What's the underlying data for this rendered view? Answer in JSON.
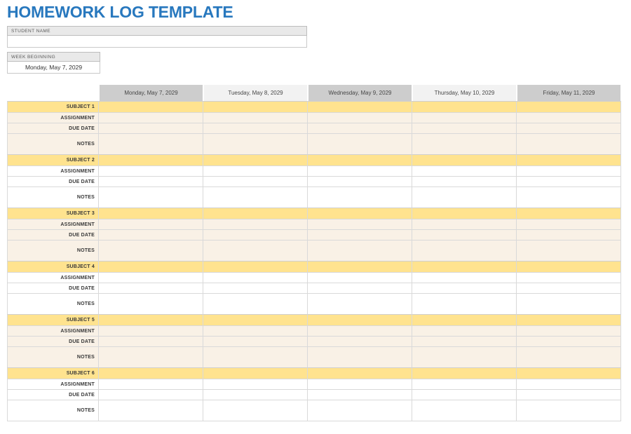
{
  "title": "HOMEWORK LOG TEMPLATE",
  "student": {
    "label": "STUDENT NAME",
    "value": ""
  },
  "week": {
    "label": "WEEK BEGINNING",
    "value": "Monday, May 7, 2029"
  },
  "table": {
    "day_headers": [
      "Monday, May 7, 2029",
      "Tuesday, May 8, 2029",
      "Wednesday, May 9, 2029",
      "Thursday, May 10, 2029",
      "Friday, May 11, 2029"
    ],
    "row_labels": [
      "ASSIGNMENT",
      "DUE DATE",
      "NOTES"
    ],
    "subjects": [
      {
        "label": "SUBJECT 1",
        "tone": "cream"
      },
      {
        "label": "SUBJECT 2",
        "tone": "white"
      },
      {
        "label": "SUBJECT 3",
        "tone": "cream"
      },
      {
        "label": "SUBJECT 4",
        "tone": "white"
      },
      {
        "label": "SUBJECT 5",
        "tone": "cream"
      },
      {
        "label": "SUBJECT 6",
        "tone": "white"
      }
    ],
    "cell_values": []
  },
  "colors": {
    "title_blue": "#2878BE",
    "subject_yellow": "#FFE38F",
    "cream_row": "#F9F1E6",
    "header_gray_dark": "#CDCDCD",
    "header_gray_light": "#F2F2F2",
    "field_label_gray": "#E9E9E9",
    "grid_line": "#D9D9D9"
  }
}
